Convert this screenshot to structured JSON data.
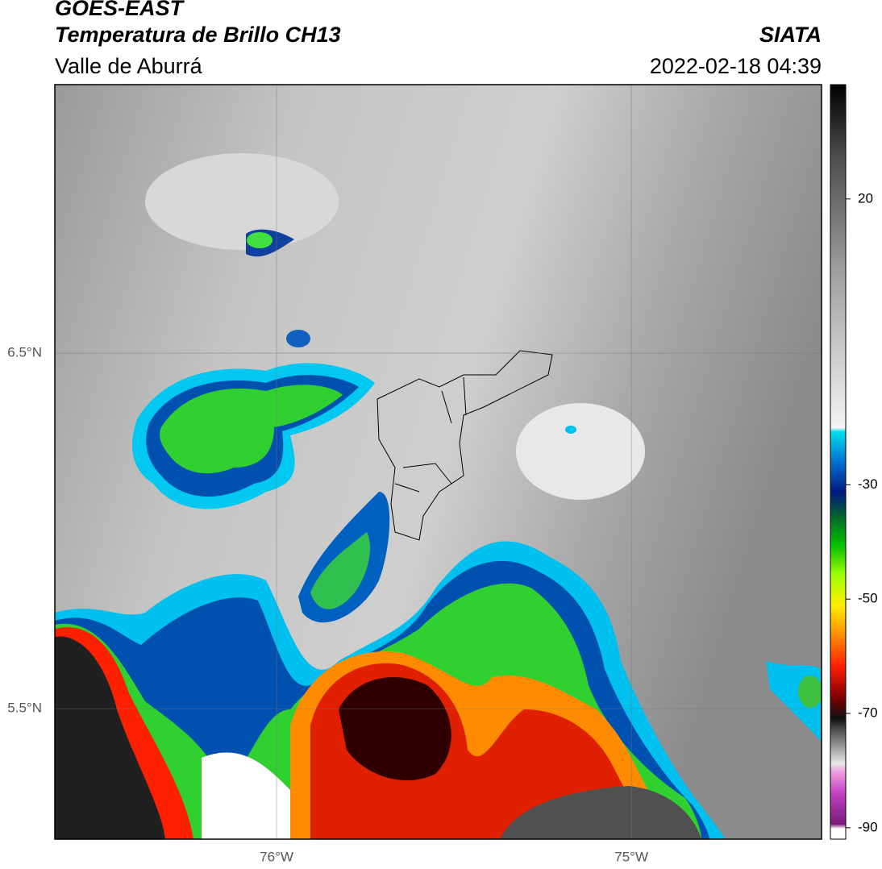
{
  "header": {
    "satellite": "GOES-EAST",
    "product": "Temperatura de Brillo CH13",
    "region": "Valle de Aburrá",
    "source": "SIATA",
    "datetime": "2022-02-18 04:39"
  },
  "map": {
    "lonlim": [
      -76.625,
      -74.464
    ],
    "latlim": [
      5.133,
      7.255
    ],
    "lon_ticks": [
      {
        "value": -76,
        "label": "76°W"
      },
      {
        "value": -75,
        "label": "75°W"
      }
    ],
    "lat_ticks": [
      {
        "value": 6.5,
        "label": "6.5°N"
      },
      {
        "value": 5.5,
        "label": "5.5°N"
      }
    ]
  },
  "colorbar": {
    "lim": [
      -92,
      40
    ],
    "ticks": [
      20,
      -30,
      -50,
      -70,
      -90
    ]
  }
}
